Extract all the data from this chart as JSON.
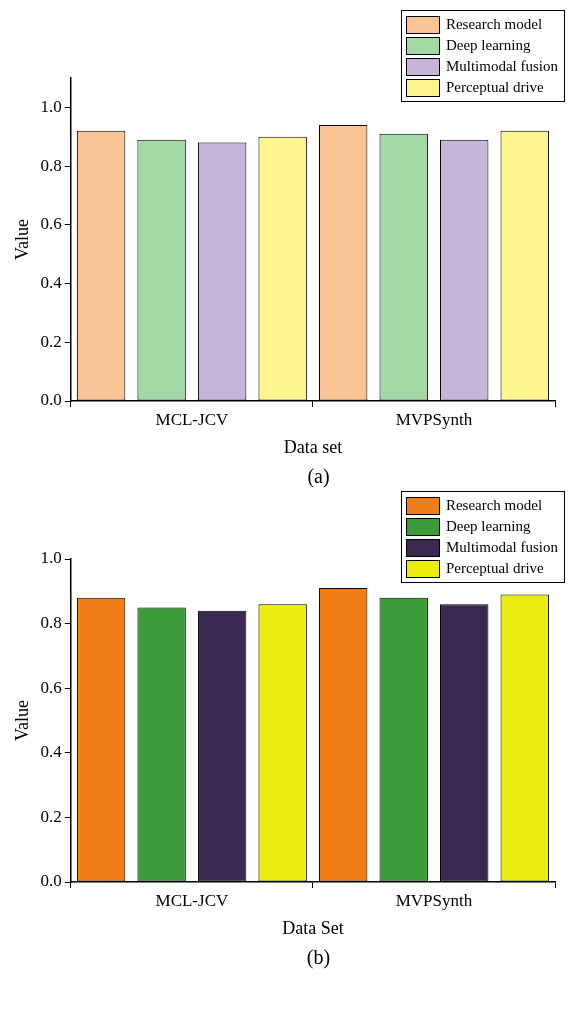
{
  "chart_data": [
    {
      "type": "bar",
      "categories": [
        "MCL-JCV",
        "MVPSynth"
      ],
      "xlabel": "Data set",
      "ylabel": "Value",
      "ylim": [
        0,
        1.1
      ],
      "yticks": [
        {
          "value": 0,
          "label": "0.0"
        },
        {
          "value": 0.2,
          "label": "0.2"
        },
        {
          "value": 0.4,
          "label": "0.4"
        },
        {
          "value": 0.6,
          "label": "0.6"
        },
        {
          "value": 0.8,
          "label": "0.8"
        },
        {
          "value": 1,
          "label": "1.0"
        }
      ],
      "grid": false,
      "legend": "top right",
      "annotations": [
        "(a)"
      ],
      "series": [
        {
          "name": "Research model",
          "color": "#fbc495",
          "values": [
            0.92,
            0.94
          ]
        },
        {
          "name": "Deep learning",
          "color": "#a3d9a5",
          "values": [
            0.89,
            0.91
          ]
        },
        {
          "name": "Multimodal fusion",
          "color": "#c7b4d9",
          "values": [
            0.88,
            0.89
          ]
        },
        {
          "name": "Perceptual drive",
          "color": "#fdf58e",
          "values": [
            0.9,
            0.92
          ]
        }
      ]
    },
    {
      "type": "bar",
      "categories": [
        "MCL-JCV",
        "MVPSynth"
      ],
      "xlabel": "Data Set",
      "ylabel": "Value",
      "ylim": [
        0,
        1.0
      ],
      "yticks": [
        {
          "value": 0,
          "label": "0.0"
        },
        {
          "value": 0.2,
          "label": "0.2"
        },
        {
          "value": 0.4,
          "label": "0.4"
        },
        {
          "value": 0.6,
          "label": "0.6"
        },
        {
          "value": 0.8,
          "label": "0.8"
        },
        {
          "value": 1,
          "label": "1.0"
        }
      ],
      "grid": false,
      "legend": "top right",
      "annotations": [
        "(b)"
      ],
      "series": [
        {
          "name": "Research model",
          "color": "#f07d16",
          "values": [
            0.88,
            0.91
          ]
        },
        {
          "name": "Deep learning",
          "color": "#3c9c3a",
          "values": [
            0.85,
            0.88
          ]
        },
        {
          "name": "Multimodal fusion",
          "color": "#3a2a52",
          "values": [
            0.84,
            0.86
          ]
        },
        {
          "name": "Perceptual drive",
          "color": "#ecec10",
          "values": [
            0.86,
            0.89
          ]
        }
      ]
    }
  ]
}
